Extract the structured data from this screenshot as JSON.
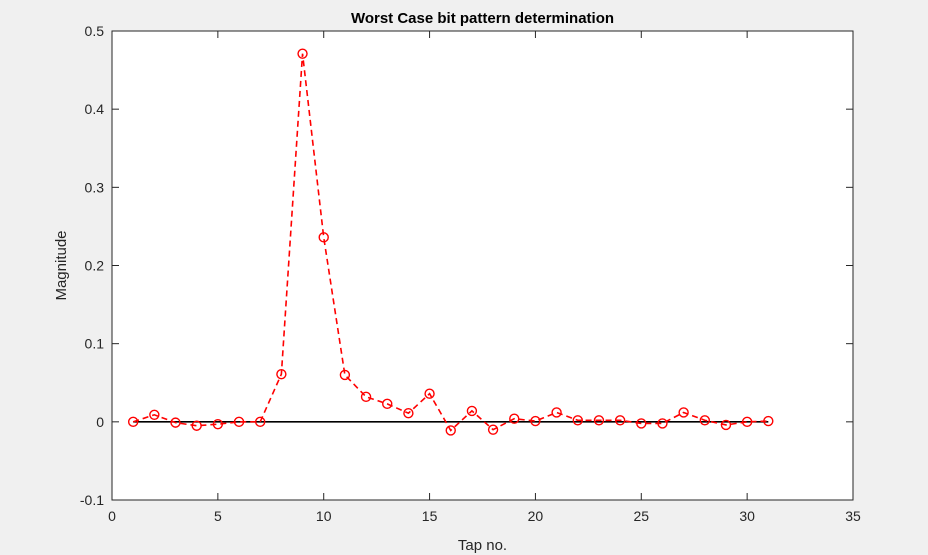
{
  "chart_data": {
    "type": "line",
    "title": "Worst Case bit pattern determination",
    "xlabel": "Tap no.",
    "ylabel": "Magnitude",
    "xlim": [
      0,
      35
    ],
    "ylim": [
      -0.1,
      0.5
    ],
    "x_ticks": [
      0,
      5,
      10,
      15,
      20,
      25,
      30,
      35
    ],
    "y_ticks": [
      -0.1,
      0,
      0.1,
      0.2,
      0.3,
      0.4,
      0.5
    ],
    "x_tick_labels": [
      "0",
      "5",
      "10",
      "15",
      "20",
      "25",
      "30",
      "35"
    ],
    "y_tick_labels": [
      "-0.1",
      "0",
      "0.1",
      "0.2",
      "0.3",
      "0.4",
      "0.5"
    ],
    "grid": false,
    "series": [
      {
        "style": "dashed-circle-markers",
        "color": "#ff0000",
        "x": [
          1,
          2,
          3,
          4,
          5,
          6,
          7,
          8,
          9,
          10,
          11,
          12,
          13,
          14,
          15,
          16,
          17,
          18,
          19,
          20,
          21,
          22,
          23,
          24,
          25,
          26,
          27,
          28,
          29,
          30,
          31
        ],
        "values": [
          0.0,
          0.009,
          -0.001,
          -0.005,
          -0.003,
          0.0,
          0.0,
          0.061,
          0.471,
          0.236,
          0.06,
          0.032,
          0.023,
          0.011,
          0.036,
          -0.011,
          0.014,
          -0.01,
          0.004,
          0.001,
          0.012,
          0.002,
          0.002,
          0.002,
          -0.002,
          -0.002,
          0.012,
          0.002,
          -0.004,
          0.0,
          0.001
        ]
      },
      {
        "style": "solid",
        "color": "#000000",
        "x": [
          1,
          31
        ],
        "values": [
          0,
          0
        ]
      }
    ]
  }
}
